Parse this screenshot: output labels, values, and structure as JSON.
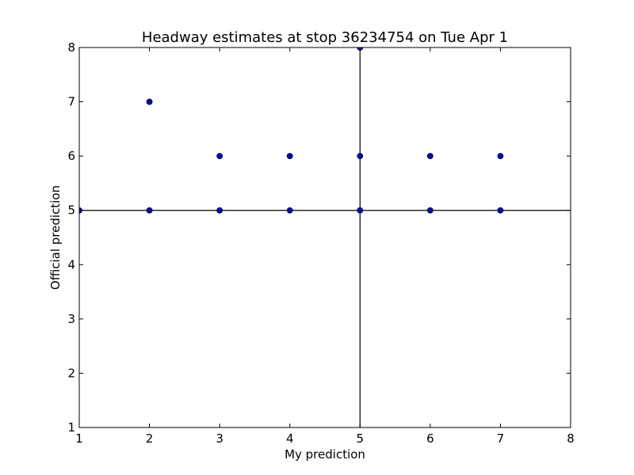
{
  "chart_data": {
    "type": "scatter",
    "title": "Headway estimates at stop 36234754 on Tue Apr 1",
    "xlabel": "My prediction",
    "ylabel": "Official prediction",
    "xlim": [
      1,
      8
    ],
    "ylim": [
      1,
      8
    ],
    "x_ticks": [
      1,
      2,
      3,
      4,
      5,
      6,
      7,
      8
    ],
    "y_ticks": [
      1,
      2,
      3,
      4,
      5,
      6,
      7,
      8
    ],
    "grid": false,
    "reference_lines": {
      "vertical_x": 5,
      "horizontal_y": 5
    },
    "marker_color": "#0000cc",
    "points": [
      {
        "x": 1,
        "y": 5
      },
      {
        "x": 2,
        "y": 7
      },
      {
        "x": 2,
        "y": 5
      },
      {
        "x": 3,
        "y": 6
      },
      {
        "x": 3,
        "y": 5
      },
      {
        "x": 4,
        "y": 6
      },
      {
        "x": 4,
        "y": 5
      },
      {
        "x": 5,
        "y": 8
      },
      {
        "x": 5,
        "y": 6
      },
      {
        "x": 5,
        "y": 5
      },
      {
        "x": 6,
        "y": 6
      },
      {
        "x": 6,
        "y": 5
      },
      {
        "x": 7,
        "y": 6
      },
      {
        "x": 7,
        "y": 5
      }
    ]
  }
}
